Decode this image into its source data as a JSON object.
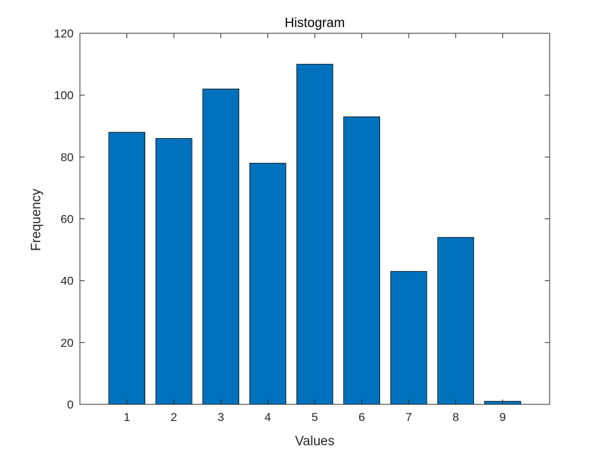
{
  "chart_data": {
    "type": "bar",
    "title": "Histogram",
    "xlabel": "Values",
    "ylabel": "Frequency",
    "categories": [
      "1",
      "2",
      "3",
      "4",
      "5",
      "6",
      "7",
      "8",
      "9"
    ],
    "x": [
      1,
      2,
      3,
      4,
      5,
      6,
      7,
      8,
      9
    ],
    "values": [
      88,
      86,
      102,
      78,
      110,
      93,
      43,
      54,
      1
    ],
    "xlim": [
      0,
      10
    ],
    "ylim": [
      0,
      120
    ],
    "yticks": [
      0,
      20,
      40,
      60,
      80,
      100,
      120
    ],
    "yticklabels": [
      "0",
      "20",
      "40",
      "60",
      "80",
      "100",
      "120"
    ],
    "bar_color": "#0072BD",
    "edge_color": "#000000",
    "grid": false,
    "legend": "none"
  }
}
